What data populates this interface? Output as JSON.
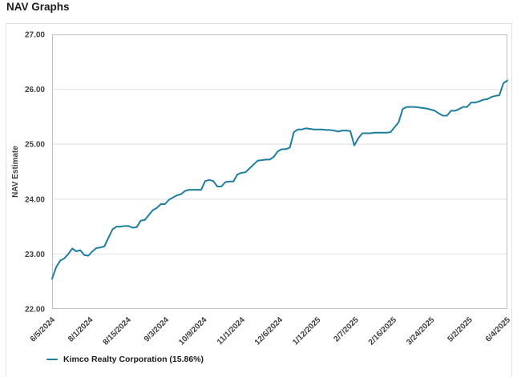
{
  "page": {
    "title": "NAV Graphs"
  },
  "legend": {
    "label": "Kimco Realty Corporation (15.86%)"
  },
  "colors": {
    "line": "#1d7e9e",
    "grid": "#e7e7e7",
    "plot_border": "#c0c0c0",
    "card_border": "#e2e2e2",
    "title_text": "#1c1c1c",
    "tick_text": "#404040"
  },
  "chart_data": {
    "type": "line",
    "title": "NAV Graphs",
    "xlabel": "",
    "ylabel": "NAV Estimate",
    "ylim": [
      22.0,
      27.0
    ],
    "yticks": [
      27.0,
      26.0,
      25.0,
      24.0,
      23.0,
      22.0
    ],
    "grid": "horizontal-only",
    "legend_position": "bottom-left",
    "x_tick_labels": [
      "6/5/2024",
      "8/1/2024",
      "8/15/2024",
      "9/3/2024",
      "10/9/2024",
      "11/1/2024",
      "12/6/2024",
      "1/12/2025",
      "2/7/2025",
      "2/16/2025",
      "3/24/2025",
      "5/2/2025",
      "6/4/2025"
    ],
    "series": [
      {
        "name": "Kimco Realty Corporation (15.86%)",
        "color": "#1d7e9e",
        "values": [
          22.55,
          22.76,
          22.88,
          22.92,
          23.0,
          23.1,
          23.05,
          23.07,
          22.98,
          22.97,
          23.05,
          23.11,
          23.12,
          23.14,
          23.3,
          23.45,
          23.5,
          23.5,
          23.51,
          23.51,
          23.48,
          23.49,
          23.61,
          23.62,
          23.71,
          23.8,
          23.84,
          23.91,
          23.91,
          23.99,
          24.03,
          24.07,
          24.09,
          24.15,
          24.17,
          24.17,
          24.17,
          24.17,
          24.33,
          24.35,
          24.33,
          24.23,
          24.23,
          24.31,
          24.32,
          24.32,
          24.45,
          24.48,
          24.49,
          24.56,
          24.63,
          24.7,
          24.71,
          24.72,
          24.72,
          24.77,
          24.87,
          24.91,
          24.91,
          24.94,
          25.22,
          25.27,
          25.27,
          25.29,
          25.28,
          25.27,
          25.27,
          25.27,
          25.26,
          25.26,
          25.25,
          25.23,
          25.25,
          25.25,
          25.24,
          24.98,
          25.11,
          25.2,
          25.2,
          25.2,
          25.21,
          25.21,
          25.21,
          25.21,
          25.22,
          25.31,
          25.4,
          25.64,
          25.68,
          25.68,
          25.68,
          25.67,
          25.66,
          25.65,
          25.63,
          25.61,
          25.56,
          25.52,
          25.52,
          25.61,
          25.61,
          25.64,
          25.68,
          25.68,
          25.76,
          25.76,
          25.78,
          25.81,
          25.82,
          25.86,
          25.88,
          25.89,
          26.11,
          26.16
        ]
      }
    ]
  }
}
